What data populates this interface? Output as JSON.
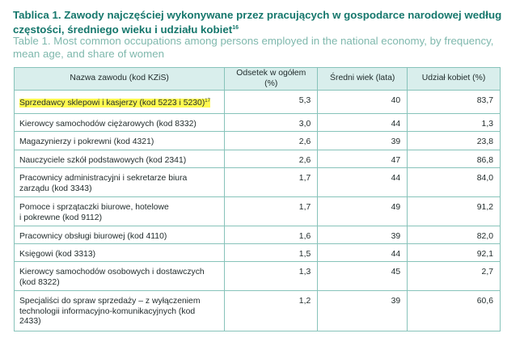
{
  "title_pl": "Tablica 1. Zawody najczęściej wykonywane przez pracujących w gospodarce narodowej według częstości, średniego wieku i udziału kobiet",
  "title_pl_sup": "16",
  "title_en": "Table 1. Most common occupations among persons employed in the national economy, by frequency, mean age, and share of women",
  "headers": [
    "Nazwa zawodu (kod KZiS)",
    "Odsetek w ogółem (%)",
    "Średni wiek (lata)",
    "Udział kobiet (%)"
  ],
  "rows": [
    {
      "name": "Sprzedawcy sklepowi i kasjerzy (kod 5223 i 5230)",
      "sup": "17",
      "pct": "5,3",
      "age": "40",
      "women": "83,7"
    },
    {
      "name": "Kierowcy samochodów ciężarowych (kod 8332)",
      "pct": "3,0",
      "age": "44",
      "women": "1,3"
    },
    {
      "name": "Magazynierzy i pokrewni (kod 4321)",
      "pct": "2,6",
      "age": "39",
      "women": "23,8"
    },
    {
      "name": "Nauczyciele szkół podstawowych (kod 2341)",
      "pct": "2,6",
      "age": "47",
      "women": "86,8"
    },
    {
      "name_l1": "Pracownicy administracyjni i sekretarze biura",
      "name_l2": "zarządu (kod 3343)",
      "pct": "1,7",
      "age": "44",
      "women": "84,0"
    },
    {
      "name_l1": "Pomoce i sprzątaczki biurowe, hotelowe",
      "name_l2": "i pokrewne (kod 9112)",
      "pct": "1,7",
      "age": "49",
      "women": "91,2"
    },
    {
      "name": "Pracownicy obsługi biurowej (kod 4110)",
      "pct": "1,6",
      "age": "39",
      "women": "82,0"
    },
    {
      "name": "Księgowi (kod 3313)",
      "pct": "1,5",
      "age": "44",
      "women": "92,1"
    },
    {
      "name_l1": "Kierowcy samochodów osobowych i dostawczych",
      "name_l2": "(kod 8322)",
      "pct": "1,3",
      "age": "45",
      "women": "2,7"
    },
    {
      "name_l1": "Specjaliści do spraw sprzedaży – z wyłączeniem",
      "name_l2": "technologii informacyjno-komunikacyjnych (kod",
      "name_l3": "2433)",
      "pct": "1,2",
      "age": "39",
      "women": "60,6"
    }
  ]
}
